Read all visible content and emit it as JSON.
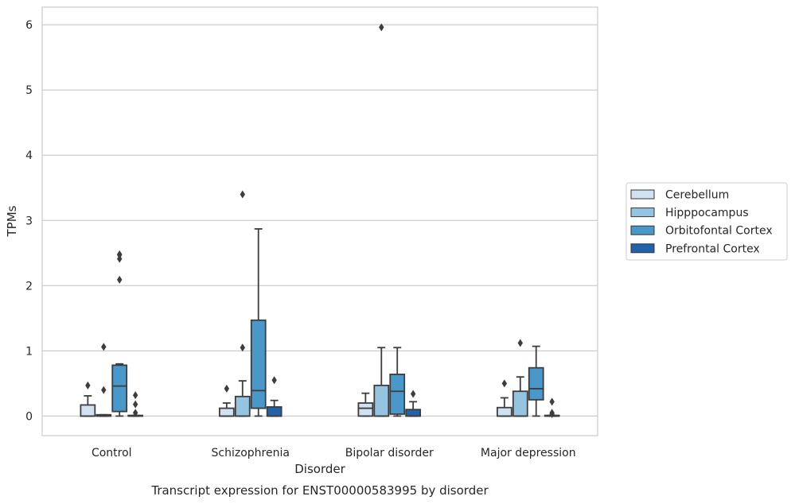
{
  "chart_data": {
    "type": "box",
    "title": "Transcript expression for ENST00000583995 by disorder",
    "xlabel": "Disorder",
    "ylabel": "TPMs",
    "ylim": [
      -0.3,
      6.27
    ],
    "yticks": [
      "0",
      "1",
      "2",
      "3",
      "4",
      "5",
      "6"
    ],
    "grid": true,
    "legend_position": "right",
    "categories": [
      "Control",
      "Schizophrenia",
      "Bipolar disorder",
      "Major depression"
    ],
    "series": [
      {
        "name": "Cerebellum",
        "color": "#d0e1f2",
        "boxes": [
          {
            "whislo": 0,
            "q1": 0,
            "med": 0,
            "q3": 0.17,
            "whishi": 0.31,
            "fliers": [
              0.47
            ]
          },
          {
            "whislo": 0,
            "q1": 0,
            "med": 0,
            "q3": 0.12,
            "whishi": 0.2,
            "fliers": [
              0.42
            ]
          },
          {
            "whislo": 0,
            "q1": 0,
            "med": 0.12,
            "q3": 0.2,
            "whishi": 0.35,
            "fliers": []
          },
          {
            "whislo": 0,
            "q1": 0,
            "med": 0,
            "q3": 0.13,
            "whishi": 0.28,
            "fliers": [
              0.5
            ]
          }
        ]
      },
      {
        "name": "Hipppocampus",
        "color": "#94c4df",
        "boxes": [
          {
            "whislo": 0,
            "q1": 0,
            "med": 0,
            "q3": 0.02,
            "whishi": 0.02,
            "fliers": [
              1.06,
              0.4
            ]
          },
          {
            "whislo": 0,
            "q1": 0,
            "med": 0,
            "q3": 0.3,
            "whishi": 0.54,
            "fliers": [
              1.05,
              3.4
            ]
          },
          {
            "whislo": 0,
            "q1": 0,
            "med": 0,
            "q3": 0.47,
            "whishi": 1.05,
            "fliers": [
              5.96
            ]
          },
          {
            "whislo": 0,
            "q1": 0,
            "med": 0,
            "q3": 0.38,
            "whishi": 0.6,
            "fliers": [
              1.12
            ]
          }
        ]
      },
      {
        "name": "Orbitofontal Cortex",
        "color": "#4a98c9",
        "boxes": [
          {
            "whislo": 0,
            "q1": 0.07,
            "med": 0.46,
            "q3": 0.78,
            "whishi": 0.8,
            "fliers": [
              2.47,
              2.48,
              2.41,
              2.09
            ]
          },
          {
            "whislo": 0,
            "q1": 0.12,
            "med": 0.39,
            "q3": 1.47,
            "whishi": 2.87,
            "fliers": []
          },
          {
            "whislo": 0,
            "q1": 0.03,
            "med": 0.38,
            "q3": 0.64,
            "whishi": 1.05,
            "fliers": []
          },
          {
            "whislo": 0,
            "q1": 0.25,
            "med": 0.42,
            "q3": 0.74,
            "whishi": 1.07,
            "fliers": []
          }
        ]
      },
      {
        "name": "Prefrontal Cortex",
        "color": "#2163aa",
        "boxes": [
          {
            "whislo": 0,
            "q1": 0,
            "med": 0,
            "q3": 0.01,
            "whishi": 0.01,
            "fliers": [
              0.32,
              0.18,
              0.05
            ]
          },
          {
            "whislo": 0,
            "q1": 0,
            "med": 0,
            "q3": 0.14,
            "whishi": 0.24,
            "fliers": [
              0.55
            ]
          },
          {
            "whislo": 0,
            "q1": 0,
            "med": 0,
            "q3": 0.1,
            "whishi": 0.22,
            "fliers": [
              0.34
            ]
          },
          {
            "whislo": 0,
            "q1": 0,
            "med": 0,
            "q3": 0.01,
            "whishi": 0.01,
            "fliers": [
              0.22,
              0.05,
              0.03
            ]
          }
        ]
      }
    ]
  }
}
